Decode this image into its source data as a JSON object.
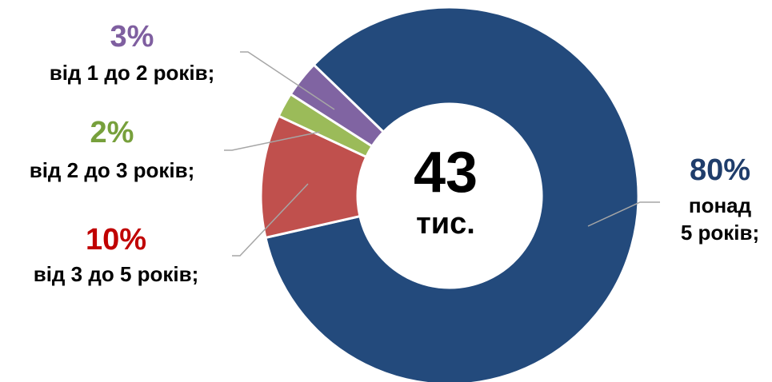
{
  "chart_data": {
    "type": "donut",
    "center_label": "43",
    "center_sublabel": "тис.",
    "categories": [
      "понад\n5 років;",
      "від 3 до 5 років;",
      "від 2 до 3 років;",
      "від 1 до 2 років;"
    ],
    "values": [
      80,
      10,
      2,
      3
    ],
    "value_labels": [
      "80%",
      "10%",
      "2%",
      "3%"
    ],
    "colors": [
      "#234a7c",
      "#c0504d",
      "#9bbb59",
      "#8064a2"
    ],
    "label_colors": [
      "#1f3d6b",
      "#c00000",
      "#77a03c",
      "#7f5fa0"
    ]
  }
}
